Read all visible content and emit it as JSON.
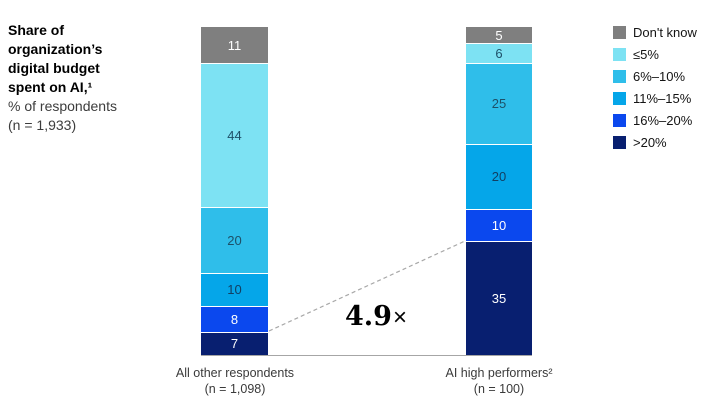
{
  "header": {
    "title_lines": [
      "Share of",
      "organization’s",
      "digital budget",
      "spent on AI,¹"
    ],
    "subtitle": "% of respondents",
    "sample": "(n = 1,933)"
  },
  "legend": {
    "items": [
      {
        "label": "Don't know",
        "color": "#7f7f7f",
        "text_color": "#ffffff"
      },
      {
        "label": "≤5%",
        "color": "#7de2f3",
        "text_color": "#1d5068"
      },
      {
        "label": "6%–10%",
        "color": "#2fbeea",
        "text_color": "#1d5068"
      },
      {
        "label": "11%–15%",
        "color": "#05a6e9",
        "text_color": "#123f63"
      },
      {
        "label": "16%–20%",
        "color": "#0b48ee",
        "text_color": "#ffffff"
      },
      {
        "label": ">20%",
        "color": "#081f70",
        "text_color": "#ffffff"
      }
    ]
  },
  "chart_data": {
    "type": "bar",
    "stacked": true,
    "orientation": "vertical",
    "title": "Share of organization’s digital budget spent on AI,¹",
    "ylabel": "% of respondents",
    "sample_size_note": "(n = 1,933)",
    "ylim": [
      0,
      100
    ],
    "grid": false,
    "legend_position": "right",
    "categories": [
      "Don't know",
      "≤5%",
      "6%–10%",
      "11%–15%",
      "16%–20%",
      ">20%"
    ],
    "series": [
      {
        "name": "All other respondents",
        "sublabel": "(n = 1,098)",
        "values": [
          11,
          44,
          20,
          10,
          8,
          7
        ]
      },
      {
        "name": "AI high performers²",
        "sublabel": "(n = 100)",
        "values": [
          5,
          6,
          25,
          20,
          10,
          35
        ]
      }
    ],
    "annotation": {
      "value": "4.9",
      "suffix": "×"
    }
  }
}
